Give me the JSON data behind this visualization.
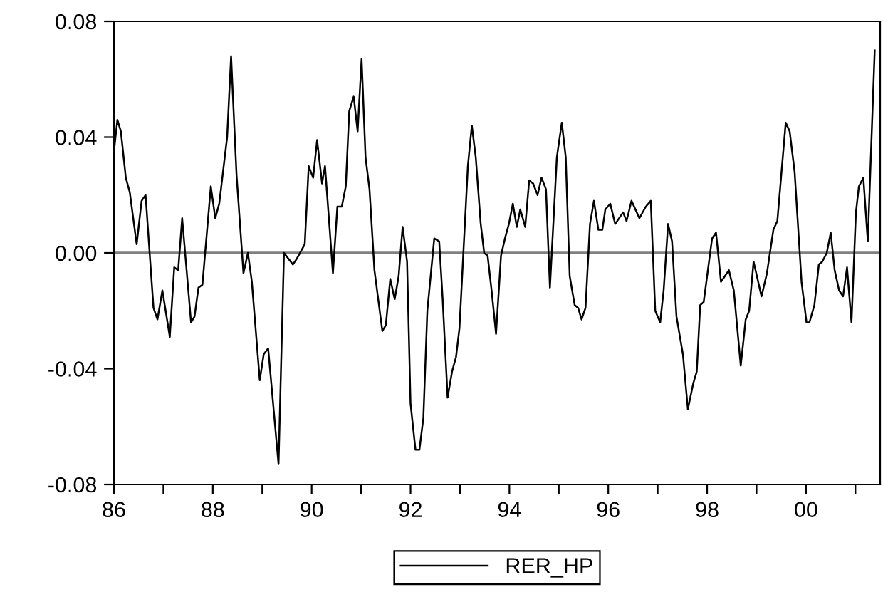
{
  "chart_data": {
    "type": "line",
    "x": [
      1986.0,
      1986.07,
      1986.14,
      1986.24,
      1986.32,
      1986.46,
      1986.56,
      1986.64,
      1986.8,
      1986.88,
      1986.98,
      1987.13,
      1987.22,
      1987.3,
      1987.38,
      1987.56,
      1987.63,
      1987.71,
      1987.79,
      1987.96,
      1988.05,
      1988.13,
      1988.29,
      1988.37,
      1988.48,
      1988.62,
      1988.71,
      1988.79,
      1988.95,
      1989.03,
      1989.12,
      1989.33,
      1989.44,
      1989.62,
      1989.7,
      1989.86,
      1989.94,
      1990.03,
      1990.11,
      1990.21,
      1990.27,
      1990.43,
      1990.52,
      1990.61,
      1990.69,
      1990.76,
      1990.85,
      1990.93,
      1991.01,
      1991.09,
      1991.17,
      1991.27,
      1991.43,
      1991.5,
      1991.59,
      1991.68,
      1991.76,
      1991.84,
      1991.93,
      1992.0,
      1992.1,
      1992.18,
      1992.26,
      1992.34,
      1992.48,
      1992.58,
      1992.65,
      1992.75,
      1992.84,
      1992.92,
      1992.99,
      1993.16,
      1993.24,
      1993.32,
      1993.42,
      1993.49,
      1993.56,
      1993.64,
      1993.73,
      1993.83,
      1993.91,
      1993.99,
      1994.07,
      1994.15,
      1994.22,
      1994.32,
      1994.4,
      1994.48,
      1994.57,
      1994.65,
      1994.74,
      1994.82,
      1994.96,
      1995.06,
      1995.14,
      1995.22,
      1995.32,
      1995.39,
      1995.46,
      1995.54,
      1995.63,
      1995.71,
      1995.8,
      1995.88,
      1995.94,
      1996.04,
      1996.14,
      1996.3,
      1996.37,
      1996.47,
      1996.63,
      1996.76,
      1996.86,
      1996.95,
      1997.05,
      1997.12,
      1997.21,
      1997.29,
      1997.38,
      1997.51,
      1997.61,
      1997.72,
      1997.79,
      1997.86,
      1997.93,
      1998.1,
      1998.18,
      1998.28,
      1998.44,
      1998.54,
      1998.68,
      1998.78,
      1998.85,
      1998.94,
      1999.1,
      1999.21,
      1999.34,
      1999.42,
      1999.59,
      1999.67,
      1999.77,
      1999.91,
      2000.01,
      2000.07,
      2000.17,
      2000.26,
      2000.33,
      2000.42,
      2000.5,
      2000.58,
      2000.67,
      2000.75,
      2000.83,
      2000.92,
      2001.01,
      2001.07,
      2001.16,
      2001.25,
      2001.39
    ],
    "series": [
      {
        "name": "RER_HP",
        "color": "#000000",
        "values": [
          0.035,
          0.046,
          0.042,
          0.026,
          0.021,
          0.003,
          0.018,
          0.02,
          -0.019,
          -0.023,
          -0.013,
          -0.029,
          -0.005,
          -0.006,
          0.012,
          -0.024,
          -0.022,
          -0.012,
          -0.011,
          0.023,
          0.012,
          0.017,
          0.04,
          0.068,
          0.027,
          -0.007,
          0.0,
          -0.01,
          -0.044,
          -0.035,
          -0.033,
          -0.073,
          0.0,
          -0.004,
          -0.002,
          0.003,
          0.03,
          0.026,
          0.039,
          0.024,
          0.03,
          -0.007,
          0.016,
          0.016,
          0.023,
          0.049,
          0.054,
          0.042,
          0.067,
          0.033,
          0.022,
          -0.006,
          -0.027,
          -0.025,
          -0.009,
          -0.016,
          -0.008,
          0.009,
          -0.003,
          -0.052,
          -0.068,
          -0.068,
          -0.057,
          -0.02,
          0.005,
          0.004,
          -0.016,
          -0.05,
          -0.041,
          -0.036,
          -0.026,
          0.03,
          0.044,
          0.033,
          0.01,
          0.0,
          -0.001,
          -0.013,
          -0.028,
          -0.001,
          0.005,
          0.01,
          0.017,
          0.009,
          0.015,
          0.009,
          0.025,
          0.024,
          0.02,
          0.026,
          0.022,
          -0.012,
          0.033,
          0.045,
          0.033,
          -0.008,
          -0.018,
          -0.019,
          -0.023,
          -0.019,
          0.01,
          0.018,
          0.008,
          0.008,
          0.015,
          0.017,
          0.01,
          0.014,
          0.011,
          0.018,
          0.012,
          0.016,
          0.018,
          -0.02,
          -0.024,
          -0.013,
          0.01,
          0.004,
          -0.022,
          -0.035,
          -0.054,
          -0.045,
          -0.041,
          -0.018,
          -0.017,
          0.005,
          0.007,
          -0.01,
          -0.006,
          -0.013,
          -0.039,
          -0.023,
          -0.02,
          -0.003,
          -0.015,
          -0.007,
          0.008,
          0.011,
          0.045,
          0.042,
          0.028,
          -0.01,
          -0.024,
          -0.024,
          -0.018,
          -0.004,
          -0.003,
          0.0,
          0.007,
          -0.006,
          -0.013,
          -0.015,
          -0.005,
          -0.024,
          0.014,
          0.023,
          0.026,
          0.004,
          0.07
        ]
      }
    ],
    "xlim": [
      1986,
      2001.5
    ],
    "xticks": [
      {
        "value": 1986,
        "label": "86"
      },
      {
        "value": 1987,
        "label": null
      },
      {
        "value": 1988,
        "label": "88"
      },
      {
        "value": 1989,
        "label": null
      },
      {
        "value": 1990,
        "label": "90"
      },
      {
        "value": 1991,
        "label": null
      },
      {
        "value": 1992,
        "label": "92"
      },
      {
        "value": 1993,
        "label": null
      },
      {
        "value": 1994,
        "label": "94"
      },
      {
        "value": 1995,
        "label": null
      },
      {
        "value": 1996,
        "label": "96"
      },
      {
        "value": 1997,
        "label": null
      },
      {
        "value": 1998,
        "label": "98"
      },
      {
        "value": 1999,
        "label": null
      },
      {
        "value": 2000,
        "label": "00"
      },
      {
        "value": 2001,
        "label": null
      }
    ],
    "ylim": [
      -0.08,
      0.08
    ],
    "yticks": [
      {
        "value": -0.08,
        "label": "-0.08"
      },
      {
        "value": -0.04,
        "label": "-0.04"
      },
      {
        "value": 0,
        "label": "0.00"
      },
      {
        "value": 0.04,
        "label": "0.04"
      },
      {
        "value": 0.08,
        "label": "0.08"
      }
    ],
    "ref_lines": [
      {
        "axis": "y",
        "value": 0,
        "color": "#808080"
      }
    ],
    "grid": false,
    "legend": "bottom",
    "marker": "none",
    "line_style": "solid"
  }
}
